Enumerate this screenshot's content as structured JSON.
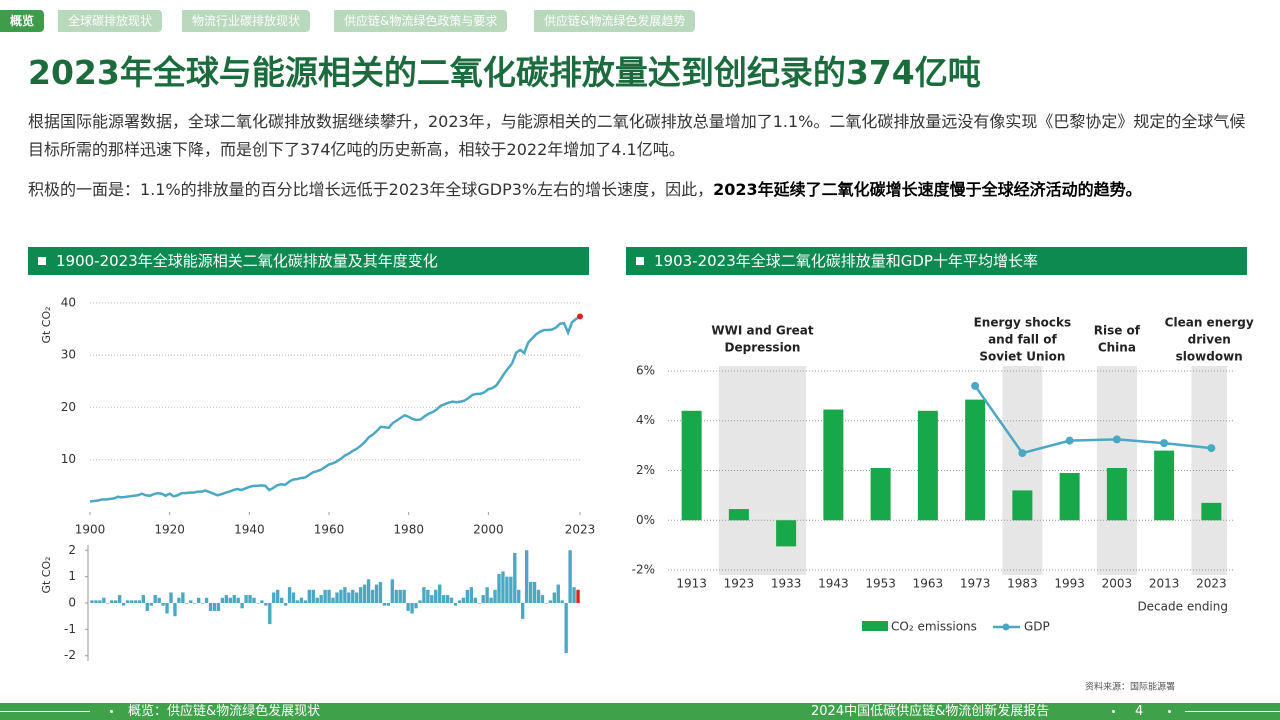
{
  "nav": {
    "tabs": [
      "概览",
      "全球碳排放现状",
      "物流行业碳排放现状",
      "供应链&物流绿色政策与要求",
      "供应链&物流绿色发展趋势"
    ]
  },
  "headline": "2023年全球与能源相关的二氧化碳排放量达到创纪录的374亿吨",
  "paragraphs": [
    [
      "根据国际能源署数据，全球二氧化碳排放数据继续攀升，2023年，与能源相关的二氧化碳排放总量增加了1.1%。二氧化碳排放量远没有像实现《巴黎协定》规定的全球气候目标所需的那样迅速下降，而是创下了374亿吨的历史新高，相较于2022年增加了4.1亿吨。"
    ],
    [
      "积极的一面是：1.1%的排放量的百分比增长远低于2023年全球GDP3%左右的增长速度，因此，",
      "2023年延续了二氧化碳增长速度慢于全球经济活动的趋势。"
    ]
  ],
  "chart_data": [
    {
      "type": "line",
      "title": "1900-2023年全球能源相关二氧化碳排放量及其年度变化",
      "y_label": "Gt CO₂",
      "color": "#4aa8c4",
      "highlight_color": "#e0201b",
      "grid": true,
      "xlim": [
        1900,
        2023
      ],
      "xticks": [
        1900,
        1920,
        1940,
        1960,
        1980,
        2000,
        2023
      ],
      "ylim": [
        0,
        41.5
      ],
      "yticks": [
        10,
        20,
        30,
        40
      ],
      "x": [
        1900,
        1901,
        1902,
        1903,
        1904,
        1905,
        1906,
        1907,
        1908,
        1909,
        1910,
        1911,
        1912,
        1913,
        1914,
        1915,
        1916,
        1917,
        1918,
        1919,
        1920,
        1921,
        1922,
        1923,
        1924,
        1925,
        1926,
        1927,
        1928,
        1929,
        1930,
        1931,
        1932,
        1933,
        1934,
        1935,
        1936,
        1937,
        1938,
        1939,
        1940,
        1941,
        1942,
        1943,
        1944,
        1945,
        1946,
        1947,
        1948,
        1949,
        1950,
        1951,
        1952,
        1953,
        1954,
        1955,
        1956,
        1957,
        1958,
        1959,
        1960,
        1961,
        1962,
        1963,
        1964,
        1965,
        1966,
        1967,
        1968,
        1969,
        1970,
        1971,
        1972,
        1973,
        1974,
        1975,
        1976,
        1977,
        1978,
        1979,
        1980,
        1981,
        1982,
        1983,
        1984,
        1985,
        1986,
        1987,
        1988,
        1989,
        1990,
        1991,
        1992,
        1993,
        1994,
        1995,
        1996,
        1997,
        1998,
        1999,
        2000,
        2001,
        2002,
        2003,
        2004,
        2005,
        2006,
        2007,
        2008,
        2009,
        2010,
        2011,
        2012,
        2013,
        2014,
        2015,
        2016,
        2017,
        2018,
        2019,
        2020,
        2021,
        2022,
        2023
      ],
      "values": [
        2.0,
        2.1,
        2.2,
        2.4,
        2.4,
        2.5,
        2.6,
        2.9,
        2.8,
        2.9,
        3.0,
        3.1,
        3.2,
        3.5,
        3.2,
        3.1,
        3.4,
        3.6,
        3.5,
        3.1,
        3.5,
        3.0,
        3.2,
        3.6,
        3.6,
        3.7,
        3.7,
        3.9,
        3.9,
        4.1,
        3.8,
        3.5,
        3.2,
        3.4,
        3.7,
        3.9,
        4.2,
        4.4,
        4.2,
        4.5,
        4.8,
        5.0,
        5.0,
        5.1,
        5.0,
        4.2,
        4.6,
        5.1,
        5.3,
        5.2,
        5.8,
        6.2,
        6.3,
        6.5,
        6.6,
        7.1,
        7.6,
        7.8,
        8.1,
        8.6,
        9.1,
        9.3,
        9.7,
        10.2,
        10.8,
        11.2,
        11.7,
        12.1,
        12.7,
        13.4,
        14.3,
        14.8,
        15.5,
        16.3,
        16.2,
        16.1,
        17.0,
        17.5,
        18.0,
        18.5,
        18.2,
        17.8,
        17.6,
        17.7,
        18.3,
        18.8,
        19.1,
        19.6,
        20.3,
        20.6,
        20.9,
        21.1,
        21.0,
        21.1,
        21.3,
        21.8,
        22.4,
        22.6,
        22.6,
        22.9,
        23.5,
        23.7,
        24.2,
        25.3,
        26.5,
        27.5,
        28.5,
        30.5,
        31.0,
        30.4,
        32.4,
        33.2,
        34.0,
        34.5,
        34.8,
        34.8,
        34.9,
        35.3,
        36.0,
        36.1,
        34.3,
        36.3,
        36.9,
        37.4
      ]
    },
    {
      "type": "bar",
      "y_label": "Gt CO₂",
      "color": "#4aa8c4",
      "highlight_color": "#e0201b",
      "xlim": [
        1899.5,
        2023.5
      ],
      "ylim": [
        -2.2,
        2.2
      ],
      "yticks": [
        -2,
        -1,
        0,
        1,
        2
      ],
      "x": [
        1900,
        1901,
        1902,
        1903,
        1904,
        1905,
        1906,
        1907,
        1908,
        1909,
        1910,
        1911,
        1912,
        1913,
        1914,
        1915,
        1916,
        1917,
        1918,
        1919,
        1920,
        1921,
        1922,
        1923,
        1924,
        1925,
        1926,
        1927,
        1928,
        1929,
        1930,
        1931,
        1932,
        1933,
        1934,
        1935,
        1936,
        1937,
        1938,
        1939,
        1940,
        1941,
        1942,
        1943,
        1944,
        1945,
        1946,
        1947,
        1948,
        1949,
        1950,
        1951,
        1952,
        1953,
        1954,
        1955,
        1956,
        1957,
        1958,
        1959,
        1960,
        1961,
        1962,
        1963,
        1964,
        1965,
        1966,
        1967,
        1968,
        1969,
        1970,
        1971,
        1972,
        1973,
        1974,
        1975,
        1976,
        1977,
        1978,
        1979,
        1980,
        1981,
        1982,
        1983,
        1984,
        1985,
        1986,
        1987,
        1988,
        1989,
        1990,
        1991,
        1992,
        1993,
        1994,
        1995,
        1996,
        1997,
        1998,
        1999,
        2000,
        2001,
        2002,
        2003,
        2004,
        2005,
        2006,
        2007,
        2008,
        2009,
        2010,
        2011,
        2012,
        2013,
        2014,
        2015,
        2016,
        2017,
        2018,
        2019,
        2020,
        2021,
        2022,
        2023
      ],
      "values": [
        0.1,
        0.1,
        0.1,
        0.2,
        0.0,
        0.1,
        0.1,
        0.3,
        -0.1,
        0.1,
        0.1,
        0.1,
        0.1,
        0.3,
        -0.3,
        -0.1,
        0.3,
        0.2,
        -0.1,
        -0.4,
        0.4,
        -0.5,
        0.2,
        0.4,
        0.0,
        0.1,
        0.0,
        0.2,
        0.0,
        0.2,
        -0.3,
        -0.3,
        -0.3,
        0.2,
        0.3,
        0.2,
        0.3,
        0.2,
        -0.2,
        0.3,
        0.3,
        0.2,
        0.0,
        0.1,
        -0.1,
        -0.8,
        0.4,
        0.5,
        0.2,
        -0.1,
        0.6,
        0.4,
        0.1,
        0.2,
        0.1,
        0.5,
        0.5,
        0.2,
        0.3,
        0.5,
        0.5,
        0.2,
        0.4,
        0.5,
        0.6,
        0.4,
        0.5,
        0.4,
        0.6,
        0.7,
        0.9,
        0.5,
        0.7,
        0.8,
        -0.1,
        -0.1,
        0.9,
        0.5,
        0.5,
        0.5,
        -0.3,
        -0.4,
        -0.2,
        0.1,
        0.6,
        0.5,
        0.3,
        0.5,
        0.7,
        0.3,
        0.3,
        0.2,
        -0.1,
        0.1,
        0.2,
        0.5,
        0.6,
        0.2,
        0.0,
        0.3,
        0.6,
        0.2,
        0.5,
        1.1,
        1.2,
        1.0,
        1.0,
        1.9,
        0.5,
        -0.6,
        2.0,
        0.8,
        0.8,
        0.5,
        0.3,
        0.0,
        0.1,
        0.4,
        0.7,
        0.1,
        -1.9,
        2.0,
        0.6,
        0.5
      ]
    },
    {
      "type": "bar_line",
      "title": "1903-2023年全球二氧化碳排放量和GDP十年平均增长率",
      "x_label": "Decade ending",
      "grid": true,
      "categories": [
        "1913",
        "1923",
        "1933",
        "1943",
        "1953",
        "1963",
        "1973",
        "1983",
        "1993",
        "2003",
        "2013",
        "2023"
      ],
      "ylim": [
        -2.2,
        6.2
      ],
      "yticks": [
        {
          "value": -2,
          "label": "-2%"
        },
        {
          "value": 0,
          "label": "0%"
        },
        {
          "value": 2,
          "label": "2%"
        },
        {
          "value": 4,
          "label": "4%"
        },
        {
          "value": 6,
          "label": "6%"
        }
      ],
      "series": [
        {
          "name": "CO₂ emissions",
          "color": "#17a84a",
          "values": [
            4.4,
            0.45,
            -1.05,
            4.45,
            2.1,
            4.4,
            4.85,
            1.2,
            1.9,
            2.1,
            2.8,
            0.7
          ]
        },
        {
          "name": "GDP",
          "color": "#4aa8c4",
          "values": [
            null,
            null,
            null,
            null,
            null,
            null,
            5.4,
            2.7,
            3.2,
            3.25,
            3.1,
            2.9
          ]
        }
      ],
      "periods": [
        {
          "label": [
            "WWI and Great",
            "Depression"
          ],
          "categories": [
            "1923",
            "1933"
          ]
        },
        {
          "label": [
            "Energy shocks",
            "and fall of",
            "Soviet Union"
          ],
          "categories": [
            "1983"
          ]
        },
        {
          "label": [
            "Rise of",
            "China"
          ],
          "categories": [
            "2003"
          ]
        },
        {
          "label": [
            "Clean energy",
            "driven",
            "slowdown"
          ],
          "categories": [
            "2023"
          ]
        }
      ]
    }
  ],
  "source": "资料来源：国际能源署",
  "footer": {
    "section": "概览：供应链&物流绿色发展现状",
    "report": "2024中国低碳供应链&物流创新发展报告",
    "page": 4
  }
}
